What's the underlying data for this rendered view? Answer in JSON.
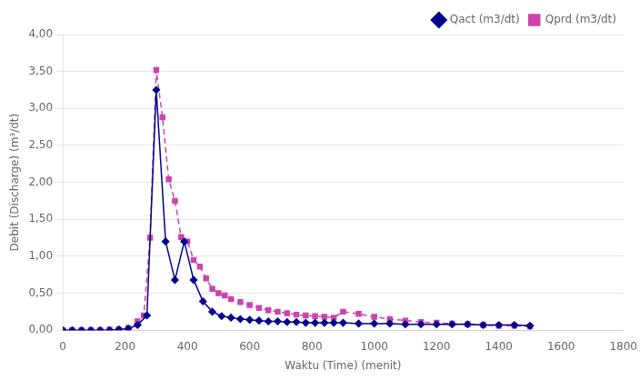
{
  "chart_data": {
    "type": "line",
    "x_label": "Waktu (Time) (menit)",
    "y_label": "Debit (Discharge) (m³/dt)",
    "xlim": [
      0,
      1800
    ],
    "ylim": [
      0.0,
      4.0
    ],
    "xticks": [
      0,
      200,
      400,
      600,
      800,
      1000,
      1200,
      1400,
      1600,
      1800
    ],
    "yticks": [
      {
        "value": 0.0,
        "label": "0,00"
      },
      {
        "value": 0.5,
        "label": "0,50"
      },
      {
        "value": 1.0,
        "label": "1,00"
      },
      {
        "value": 1.5,
        "label": "1,50"
      },
      {
        "value": 2.0,
        "label": "2,00"
      },
      {
        "value": 2.5,
        "label": "2,50"
      },
      {
        "value": 3.0,
        "label": "3,00"
      },
      {
        "value": 3.5,
        "label": "3,50"
      },
      {
        "value": 4.0,
        "label": "4,00"
      }
    ],
    "grid": "y",
    "legend": "upper right",
    "series": [
      {
        "name": "Qact (m3/dt)",
        "color": "#00008B",
        "marker": "diamond",
        "line_style": "solid",
        "x": [
          0,
          30,
          60,
          90,
          120,
          150,
          180,
          210,
          240,
          270,
          300,
          330,
          360,
          390,
          420,
          450,
          480,
          510,
          540,
          570,
          600,
          630,
          660,
          690,
          720,
          750,
          780,
          810,
          840,
          870,
          900,
          950,
          1000,
          1050,
          1100,
          1150,
          1200,
          1250,
          1300,
          1350,
          1400,
          1450,
          1500
        ],
        "values": [
          0.0,
          0.0,
          0.0,
          0.0,
          0.0,
          0.0,
          0.01,
          0.02,
          0.07,
          0.2,
          3.25,
          1.2,
          0.68,
          1.2,
          0.68,
          0.39,
          0.25,
          0.19,
          0.17,
          0.15,
          0.14,
          0.13,
          0.12,
          0.12,
          0.11,
          0.11,
          0.1,
          0.1,
          0.1,
          0.1,
          0.1,
          0.09,
          0.09,
          0.09,
          0.08,
          0.08,
          0.08,
          0.08,
          0.08,
          0.07,
          0.07,
          0.07,
          0.06
        ]
      },
      {
        "name": "Qprd (m3/dt)",
        "color": "#CC44AA",
        "marker": "square",
        "line_style": "dashed",
        "x": [
          0,
          30,
          60,
          90,
          120,
          150,
          180,
          210,
          240,
          260,
          280,
          300,
          320,
          340,
          360,
          380,
          400,
          420,
          440,
          460,
          480,
          500,
          520,
          540,
          570,
          600,
          630,
          660,
          690,
          720,
          750,
          780,
          810,
          840,
          870,
          900,
          950,
          1000,
          1050,
          1100,
          1150,
          1200,
          1250,
          1300,
          1350,
          1400,
          1450,
          1500
        ],
        "values": [
          0.0,
          0.0,
          0.0,
          0.0,
          0.0,
          0.01,
          0.01,
          0.03,
          0.12,
          0.2,
          1.25,
          3.52,
          2.88,
          2.04,
          1.75,
          1.26,
          1.2,
          0.95,
          0.86,
          0.7,
          0.56,
          0.5,
          0.47,
          0.42,
          0.38,
          0.34,
          0.3,
          0.27,
          0.25,
          0.23,
          0.21,
          0.2,
          0.19,
          0.18,
          0.17,
          0.25,
          0.22,
          0.18,
          0.15,
          0.13,
          0.11,
          0.1,
          0.09,
          0.08,
          0.07,
          0.06,
          0.06,
          0.05
        ]
      }
    ]
  }
}
